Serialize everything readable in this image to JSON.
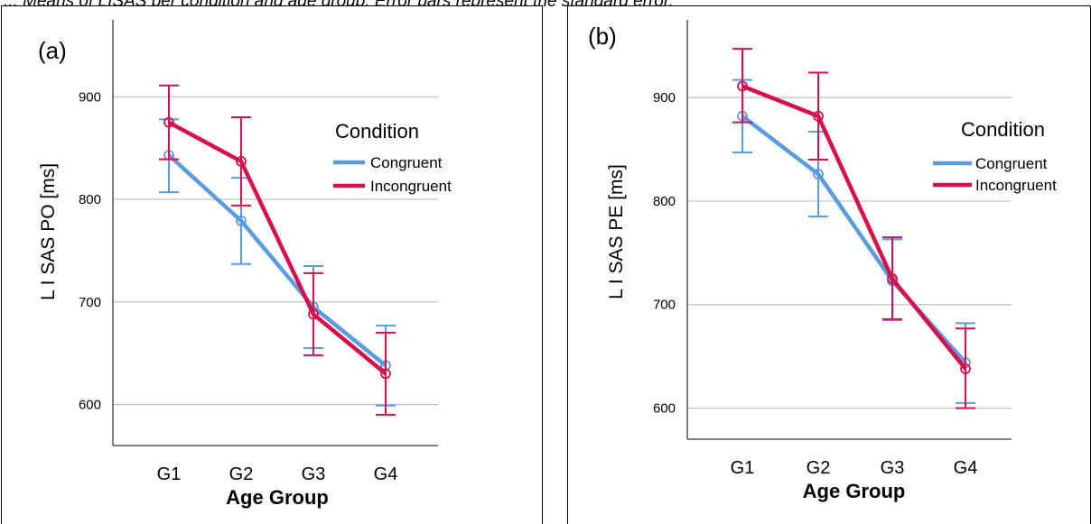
{
  "caption_fragment": "... Means of LISAS per condition and age group. Error bars represent the standard error.",
  "chart_data": [
    {
      "type": "line",
      "panel_label": "(a)",
      "xlabel": "Age Group",
      "ylabel": "L I SAS PO [ms]",
      "categories": [
        "G1",
        "G2",
        "G3",
        "G4"
      ],
      "ylim": [
        560,
        975
      ],
      "yticks": [
        600,
        700,
        800,
        900
      ],
      "grid": true,
      "legend": {
        "title": "Condition",
        "placement": "right"
      },
      "series": [
        {
          "name": "Congruent",
          "color": "#5b9be0",
          "values": [
            843,
            779,
            695,
            638
          ],
          "err_low": [
            807,
            737,
            655,
            599
          ],
          "err_high": [
            878,
            821,
            735,
            677
          ]
        },
        {
          "name": "Incongruent",
          "color": "#d6104a",
          "values": [
            875,
            837,
            688,
            630
          ],
          "err_low": [
            839,
            794,
            648,
            590
          ],
          "err_high": [
            911,
            880,
            728,
            670
          ]
        }
      ]
    },
    {
      "type": "line",
      "panel_label": "(b)",
      "xlabel": "Age Group",
      "ylabel": "L I SAS PE [ms]",
      "categories": [
        "G1",
        "G2",
        "G3",
        "G4"
      ],
      "ylim": [
        570,
        975
      ],
      "yticks": [
        600,
        700,
        800,
        900
      ],
      "grid": true,
      "legend": {
        "title": "Condition",
        "placement": "right"
      },
      "series": [
        {
          "name": "Congruent",
          "color": "#5b9be0",
          "values": [
            882,
            826,
            723,
            644
          ],
          "err_low": [
            847,
            785,
            685,
            605
          ],
          "err_high": [
            917,
            867,
            763,
            682
          ]
        },
        {
          "name": "Incongruent",
          "color": "#d6104a",
          "values": [
            911,
            882,
            725,
            638
          ],
          "err_low": [
            876,
            840,
            686,
            600
          ],
          "err_high": [
            947,
            924,
            765,
            677
          ]
        }
      ]
    }
  ]
}
